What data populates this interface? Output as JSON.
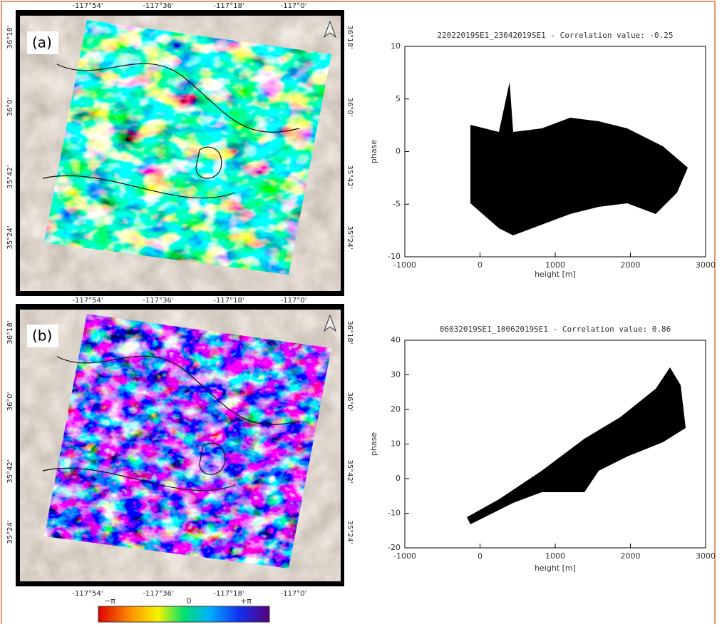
{
  "panels": [
    {
      "label": "(a)",
      "map": {
        "lon_ticks": [
          "-117°54'",
          "-117°36'",
          "-117°18'",
          "-117°0'"
        ],
        "lat_ticks": [
          "36°18'",
          "36°0'",
          "35°42'",
          "35°24'"
        ]
      },
      "plot": {
        "title": "22022019SE1_23042019SE1 - Correlation value: -0.25",
        "xlabel": "height [m]",
        "ylabel": "phase",
        "xlim": [
          -1000,
          3000
        ],
        "xticks": [
          -1000,
          0,
          1000,
          2000,
          3000
        ],
        "ylim": [
          -10,
          10
        ],
        "yticks": [
          -10,
          -5,
          0,
          5,
          10
        ]
      }
    },
    {
      "label": "(b)",
      "map": {
        "lon_ticks": [
          "-117°54'",
          "-117°36'",
          "-117°18'",
          "-117°0'"
        ],
        "lat_ticks": [
          "36°18'",
          "36°0'",
          "35°42'",
          "35°24'"
        ]
      },
      "plot": {
        "title": "06032019SE1_10062019SE1 - Correlation value: 0.86",
        "xlabel": "height [m]",
        "ylabel": "phase",
        "xlim": [
          -1000,
          3000
        ],
        "xticks": [
          -1000,
          0,
          1000,
          2000,
          3000
        ],
        "ylim": [
          -20,
          40
        ],
        "yticks": [
          -20,
          -10,
          0,
          10,
          20,
          30,
          40
        ]
      }
    }
  ],
  "colorbar": {
    "labels": [
      "−π",
      "0",
      "+π"
    ]
  }
}
